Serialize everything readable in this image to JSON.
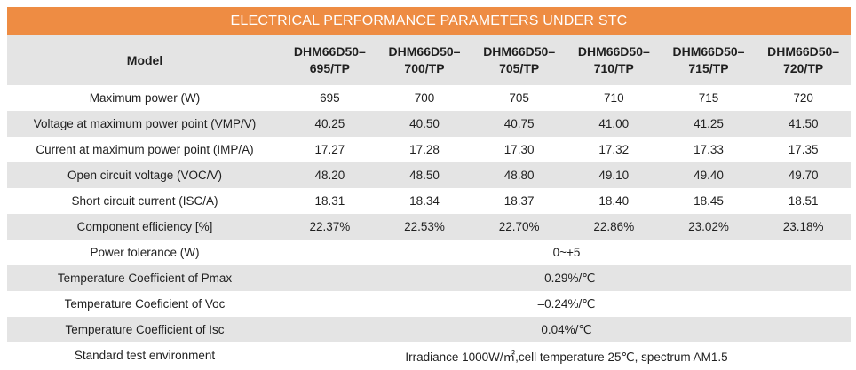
{
  "title": "ELECTRICAL PERFORMANCE PARAMETERS UNDER STC",
  "header": {
    "label": "Model",
    "models": [
      [
        "DHM66D50–",
        "695/TP"
      ],
      [
        "DHM66D50–",
        "700/TP"
      ],
      [
        "DHM66D50–",
        "705/TP"
      ],
      [
        "DHM66D50–",
        "710/TP"
      ],
      [
        "DHM66D50–",
        "715/TP"
      ],
      [
        "DHM66D50–",
        "720/TP"
      ]
    ]
  },
  "rows": [
    {
      "label": "Maximum power (W)",
      "values": [
        "695",
        "700",
        "705",
        "710",
        "715",
        "720"
      ]
    },
    {
      "label": "Voltage at maximum power point (VMP/V)",
      "values": [
        "40.25",
        "40.50",
        "40.75",
        "41.00",
        "41.25",
        "41.50"
      ]
    },
    {
      "label": "Current at maximum power point (IMP/A)",
      "values": [
        "17.27",
        "17.28",
        "17.30",
        "17.32",
        "17.33",
        "17.35"
      ]
    },
    {
      "label": "Open circuit voltage (VOC/V)",
      "values": [
        "48.20",
        "48.50",
        "48.80",
        "49.10",
        "49.40",
        "49.70"
      ]
    },
    {
      "label": "Short circuit current (ISC/A)",
      "values": [
        "18.31",
        "18.34",
        "18.37",
        "18.40",
        "18.45",
        "18.51"
      ]
    },
    {
      "label": "Component efficiency [%]",
      "values": [
        "22.37%",
        "22.53%",
        "22.70%",
        "22.86%",
        "23.02%",
        "23.18%"
      ]
    }
  ],
  "span_rows": [
    {
      "label": "Power tolerance (W)",
      "value": "0~+5"
    },
    {
      "label": "Temperature Coefficient of Pmax",
      "value": "–0.29%/℃"
    },
    {
      "label": "Temperature Coeficient of Voc",
      "value": "–0.24%/℃"
    },
    {
      "label": "Temperature Coefficient of Isc",
      "value": "0.04%/℃"
    },
    {
      "label": "Standard test environment",
      "value": "Irradiance 1000W/㎡,cell temperature 25℃, spectrum AM1.5"
    }
  ],
  "colors": {
    "title_bar": "#ee8c43",
    "shade_row": "#e4e4e4"
  }
}
